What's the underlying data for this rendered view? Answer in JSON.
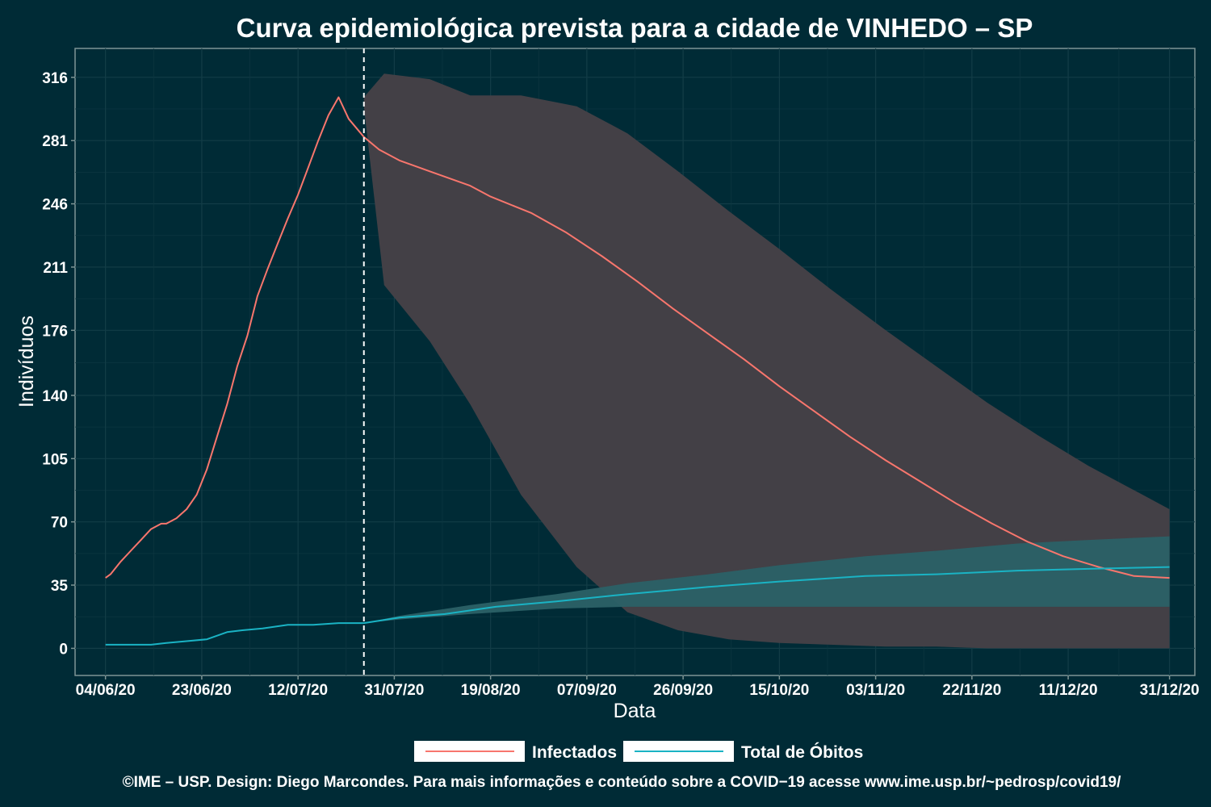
{
  "chart_data": {
    "type": "line",
    "title": "Curva epidemiológica prevista para a cidade de VINHEDO – SP",
    "xlabel": "Data",
    "ylabel": "Indivíduos",
    "x_ticks": [
      "04/06/20",
      "23/06/20",
      "12/07/20",
      "31/07/20",
      "19/08/20",
      "07/09/20",
      "26/09/20",
      "15/10/20",
      "03/11/20",
      "22/11/20",
      "11/12/20",
      "31/12/20"
    ],
    "y_ticks": [
      "0",
      "35",
      "70",
      "105",
      "140",
      "176",
      "211",
      "246",
      "281",
      "316"
    ],
    "ylim": [
      -15,
      332
    ],
    "x_range": [
      "2020-05-29",
      "2021-01-05"
    ],
    "forecast_start": "2020-07-25",
    "grid": true,
    "legend_position": "bottom",
    "series": [
      {
        "name": "Infectados",
        "color": "#f8766d",
        "points": [
          [
            "2020-06-04",
            39
          ],
          [
            "2020-06-05",
            41
          ],
          [
            "2020-06-07",
            48
          ],
          [
            "2020-06-09",
            54
          ],
          [
            "2020-06-11",
            60
          ],
          [
            "2020-06-13",
            66
          ],
          [
            "2020-06-15",
            69
          ],
          [
            "2020-06-16",
            69
          ],
          [
            "2020-06-18",
            72
          ],
          [
            "2020-06-20",
            77
          ],
          [
            "2020-06-22",
            85
          ],
          [
            "2020-06-24",
            99
          ],
          [
            "2020-06-26",
            117
          ],
          [
            "2020-06-28",
            135
          ],
          [
            "2020-06-30",
            156
          ],
          [
            "2020-07-02",
            173
          ],
          [
            "2020-07-04",
            195
          ],
          [
            "2020-07-06",
            210
          ],
          [
            "2020-07-08",
            224
          ],
          [
            "2020-07-10",
            238
          ],
          [
            "2020-07-12",
            251
          ],
          [
            "2020-07-14",
            266
          ],
          [
            "2020-07-16",
            281
          ],
          [
            "2020-07-18",
            295
          ],
          [
            "2020-07-20",
            305
          ],
          [
            "2020-07-22",
            293
          ],
          [
            "2020-07-25",
            283
          ],
          [
            "2020-07-28",
            276
          ],
          [
            "2020-08-01",
            270
          ],
          [
            "2020-08-07",
            264
          ],
          [
            "2020-08-15",
            256
          ],
          [
            "2020-08-19",
            250
          ],
          [
            "2020-08-27",
            241
          ],
          [
            "2020-09-03",
            230
          ],
          [
            "2020-09-10",
            217
          ],
          [
            "2020-09-17",
            203
          ],
          [
            "2020-09-24",
            188
          ],
          [
            "2020-10-01",
            174
          ],
          [
            "2020-10-08",
            160
          ],
          [
            "2020-10-15",
            145
          ],
          [
            "2020-10-22",
            131
          ],
          [
            "2020-10-29",
            117
          ],
          [
            "2020-11-05",
            104
          ],
          [
            "2020-11-12",
            92
          ],
          [
            "2020-11-19",
            80
          ],
          [
            "2020-11-26",
            69
          ],
          [
            "2020-12-03",
            59
          ],
          [
            "2020-12-10",
            51
          ],
          [
            "2020-12-17",
            45
          ],
          [
            "2020-12-24",
            40
          ],
          [
            "2020-12-31",
            39
          ]
        ]
      },
      {
        "name": "Total de Óbitos",
        "color": "#1ab3c4",
        "points": [
          [
            "2020-06-04",
            2
          ],
          [
            "2020-06-07",
            2
          ],
          [
            "2020-06-13",
            2
          ],
          [
            "2020-06-16",
            3
          ],
          [
            "2020-06-20",
            4
          ],
          [
            "2020-06-24",
            5
          ],
          [
            "2020-06-28",
            9
          ],
          [
            "2020-07-01",
            10
          ],
          [
            "2020-07-05",
            11
          ],
          [
            "2020-07-10",
            13
          ],
          [
            "2020-07-15",
            13
          ],
          [
            "2020-07-20",
            14
          ],
          [
            "2020-07-25",
            14
          ],
          [
            "2020-08-01",
            17
          ],
          [
            "2020-08-10",
            19
          ],
          [
            "2020-08-20",
            23
          ],
          [
            "2020-09-01",
            26
          ],
          [
            "2020-09-15",
            30
          ],
          [
            "2020-10-01",
            34
          ],
          [
            "2020-10-15",
            37
          ],
          [
            "2020-11-01",
            40
          ],
          [
            "2020-11-15",
            41
          ],
          [
            "2020-12-01",
            43
          ],
          [
            "2020-12-15",
            44
          ],
          [
            "2020-12-31",
            45
          ]
        ]
      }
    ],
    "bands": [
      {
        "series": "Infectados",
        "color": "#434046",
        "points": [
          [
            "2020-07-25",
            300,
            305
          ],
          [
            "2020-07-29",
            201,
            318
          ],
          [
            "2020-08-07",
            170,
            315
          ],
          [
            "2020-08-15",
            135,
            306
          ],
          [
            "2020-08-25",
            85,
            306
          ],
          [
            "2020-09-05",
            45,
            300
          ],
          [
            "2020-09-15",
            20,
            285
          ],
          [
            "2020-09-25",
            10,
            264
          ],
          [
            "2020-10-05",
            5,
            242
          ],
          [
            "2020-10-15",
            3,
            221
          ],
          [
            "2020-10-25",
            2,
            199
          ],
          [
            "2020-11-05",
            1,
            176
          ],
          [
            "2020-11-15",
            1,
            156
          ],
          [
            "2020-11-25",
            0,
            136
          ],
          [
            "2020-12-05",
            0,
            118
          ],
          [
            "2020-12-15",
            0,
            101
          ],
          [
            "2020-12-25",
            0,
            86
          ],
          [
            "2020-12-31",
            0,
            77
          ]
        ]
      },
      {
        "series": "Total de Óbitos",
        "color": "#2b6167",
        "points": [
          [
            "2020-07-25",
            14,
            14
          ],
          [
            "2020-08-01",
            16,
            18
          ],
          [
            "2020-08-15",
            19,
            24
          ],
          [
            "2020-09-01",
            22,
            30
          ],
          [
            "2020-09-15",
            23,
            36
          ],
          [
            "2020-10-01",
            23,
            41
          ],
          [
            "2020-10-15",
            23,
            46
          ],
          [
            "2020-11-01",
            23,
            51
          ],
          [
            "2020-11-15",
            23,
            54
          ],
          [
            "2020-12-01",
            23,
            58
          ],
          [
            "2020-12-15",
            23,
            60
          ],
          [
            "2020-12-31",
            23,
            62
          ]
        ]
      }
    ]
  },
  "legend": {
    "items": [
      {
        "label": "Infectados",
        "color": "#f8766d"
      },
      {
        "label": "Total de Óbitos",
        "color": "#1ab3c4"
      }
    ]
  },
  "caption": "©IME – USP. Design: Diego Marcondes. Para mais informações e conteúdo sobre a COVID−19 acesse www.ime.usp.br/~pedrosp/covid19/"
}
